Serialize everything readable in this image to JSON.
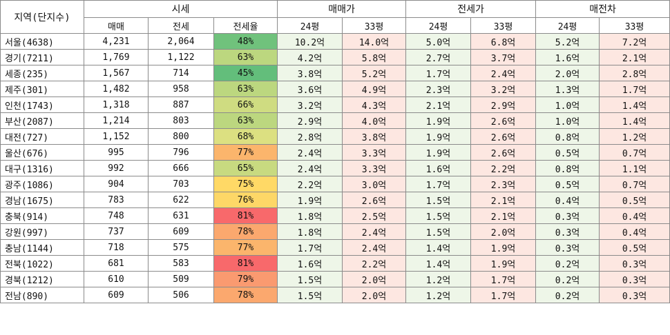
{
  "headers": {
    "region": "지역(단지수)",
    "market_group": "시세",
    "sale_group": "매매가",
    "jeonse_group": "전세가",
    "gap_group": "매전차",
    "sub": {
      "sale": "매매",
      "jeonse": "전세",
      "ratio": "전세율",
      "p24": "24평",
      "p33": "33평"
    }
  },
  "ratio_colors": {
    "45%": "#63be7b",
    "48%": "#70c27c",
    "63%": "#bcd77f",
    "65%": "#c8da80",
    "66%": "#cfdc81",
    "68%": "#dce081",
    "75%": "#ffd966",
    "76%": "#fdd767",
    "77%": "#fbb56c",
    "78%": "#fba86e",
    "79%": "#fa9a70",
    "81%": "#f8696b"
  },
  "rows": [
    {
      "region": "서울(4638)",
      "sale": "4,231",
      "jeonse": "2,064",
      "ratio": "48%",
      "s24": "10.2억",
      "s33": "14.0억",
      "j24": "5.0억",
      "j33": "6.8억",
      "g24": "5.2억",
      "g33": "7.2억"
    },
    {
      "region": "경기(7211)",
      "sale": "1,769",
      "jeonse": "1,122",
      "ratio": "63%",
      "s24": "4.2억",
      "s33": "5.8억",
      "j24": "2.7억",
      "j33": "3.7억",
      "g24": "1.6억",
      "g33": "2.1억"
    },
    {
      "region": "세종(235)",
      "sale": "1,567",
      "jeonse": "714",
      "ratio": "45%",
      "s24": "3.8억",
      "s33": "5.2억",
      "j24": "1.7억",
      "j33": "2.4억",
      "g24": "2.0억",
      "g33": "2.8억"
    },
    {
      "region": "제주(301)",
      "sale": "1,482",
      "jeonse": "958",
      "ratio": "63%",
      "s24": "3.6억",
      "s33": "4.9억",
      "j24": "2.3억",
      "j33": "3.2억",
      "g24": "1.3억",
      "g33": "1.7억"
    },
    {
      "region": "인천(1743)",
      "sale": "1,318",
      "jeonse": "887",
      "ratio": "66%",
      "s24": "3.2억",
      "s33": "4.3억",
      "j24": "2.1억",
      "j33": "2.9억",
      "g24": "1.0억",
      "g33": "1.4억"
    },
    {
      "region": "부산(2087)",
      "sale": "1,214",
      "jeonse": "803",
      "ratio": "63%",
      "s24": "2.9억",
      "s33": "4.0억",
      "j24": "1.9억",
      "j33": "2.6억",
      "g24": "1.0억",
      "g33": "1.4억"
    },
    {
      "region": "대전(727)",
      "sale": "1,152",
      "jeonse": "800",
      "ratio": "68%",
      "s24": "2.8억",
      "s33": "3.8억",
      "j24": "1.9억",
      "j33": "2.6억",
      "g24": "0.8억",
      "g33": "1.2억"
    },
    {
      "region": "울산(676)",
      "sale": "995",
      "jeonse": "796",
      "ratio": "77%",
      "s24": "2.4억",
      "s33": "3.3억",
      "j24": "1.9억",
      "j33": "2.6억",
      "g24": "0.5억",
      "g33": "0.7억"
    },
    {
      "region": "대구(1316)",
      "sale": "992",
      "jeonse": "666",
      "ratio": "65%",
      "s24": "2.4억",
      "s33": "3.3억",
      "j24": "1.6억",
      "j33": "2.2억",
      "g24": "0.8억",
      "g33": "1.1억"
    },
    {
      "region": "광주(1086)",
      "sale": "904",
      "jeonse": "703",
      "ratio": "75%",
      "s24": "2.2억",
      "s33": "3.0억",
      "j24": "1.7억",
      "j33": "2.3억",
      "g24": "0.5억",
      "g33": "0.7억"
    },
    {
      "region": "경남(1675)",
      "sale": "783",
      "jeonse": "622",
      "ratio": "76%",
      "s24": "1.9억",
      "s33": "2.6억",
      "j24": "1.5억",
      "j33": "2.1억",
      "g24": "0.4억",
      "g33": "0.5억"
    },
    {
      "region": "충북(914)",
      "sale": "748",
      "jeonse": "631",
      "ratio": "81%",
      "s24": "1.8억",
      "s33": "2.5억",
      "j24": "1.5억",
      "j33": "2.1억",
      "g24": "0.3억",
      "g33": "0.4억"
    },
    {
      "region": "강원(997)",
      "sale": "737",
      "jeonse": "609",
      "ratio": "78%",
      "s24": "1.8억",
      "s33": "2.4억",
      "j24": "1.5억",
      "j33": "2.0억",
      "g24": "0.3억",
      "g33": "0.4억"
    },
    {
      "region": "충남(1144)",
      "sale": "718",
      "jeonse": "575",
      "ratio": "77%",
      "s24": "1.7억",
      "s33": "2.4억",
      "j24": "1.4억",
      "j33": "1.9억",
      "g24": "0.3억",
      "g33": "0.5억"
    },
    {
      "region": "전북(1022)",
      "sale": "681",
      "jeonse": "583",
      "ratio": "81%",
      "s24": "1.6억",
      "s33": "2.2억",
      "j24": "1.4억",
      "j33": "1.9억",
      "g24": "0.2억",
      "g33": "0.3억"
    },
    {
      "region": "경북(1212)",
      "sale": "610",
      "jeonse": "509",
      "ratio": "79%",
      "s24": "1.5억",
      "s33": "2.0억",
      "j24": "1.2억",
      "j33": "1.7억",
      "g24": "0.2억",
      "g33": "0.3억"
    },
    {
      "region": "전남(890)",
      "sale": "609",
      "jeonse": "506",
      "ratio": "78%",
      "s24": "1.5억",
      "s33": "2.0억",
      "j24": "1.2억",
      "j33": "1.7억",
      "g24": "0.2억",
      "g33": "0.3억"
    }
  ]
}
